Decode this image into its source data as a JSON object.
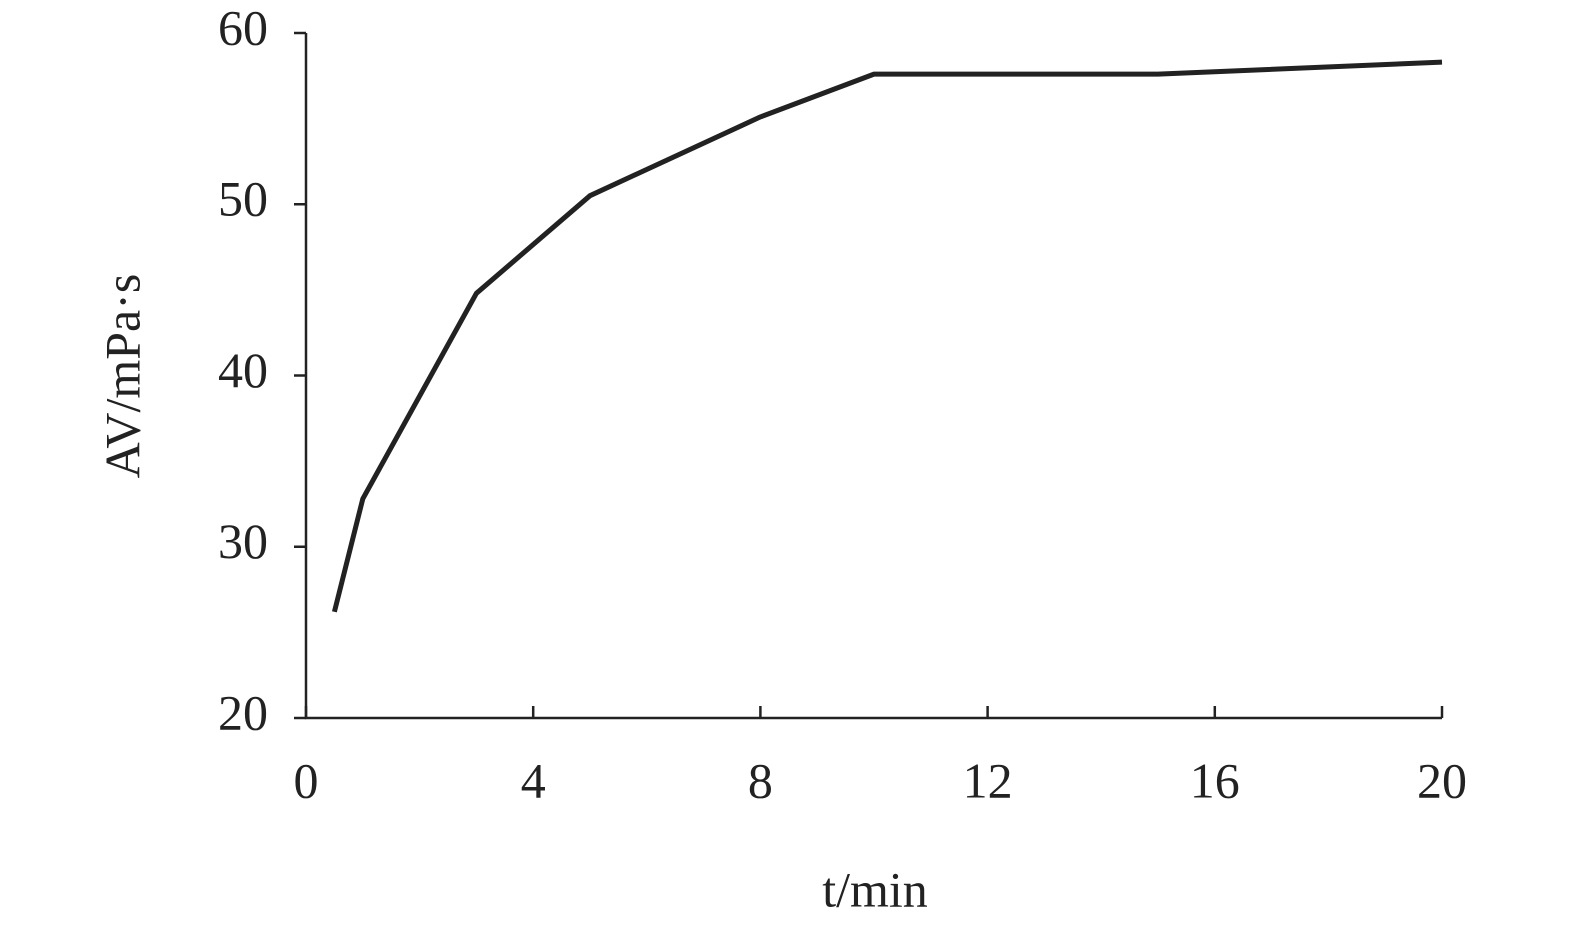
{
  "chart_data": {
    "type": "line",
    "x_label": "t/min",
    "y_label": "AV/mPa·s",
    "x": [
      0.5,
      1,
      3,
      5,
      8,
      10,
      15,
      20
    ],
    "series": [
      {
        "name": "AV",
        "color": "#222222",
        "values": [
          26.2,
          32.8,
          44.8,
          50.5,
          55.1,
          57.6,
          57.6,
          58.3
        ]
      }
    ],
    "xlim": [
      0,
      20
    ],
    "xticks": [
      0,
      4,
      8,
      12,
      16,
      20
    ],
    "ylim": [
      20,
      60
    ],
    "yticks": [
      20,
      30,
      40,
      50,
      60
    ],
    "grid": false
  }
}
